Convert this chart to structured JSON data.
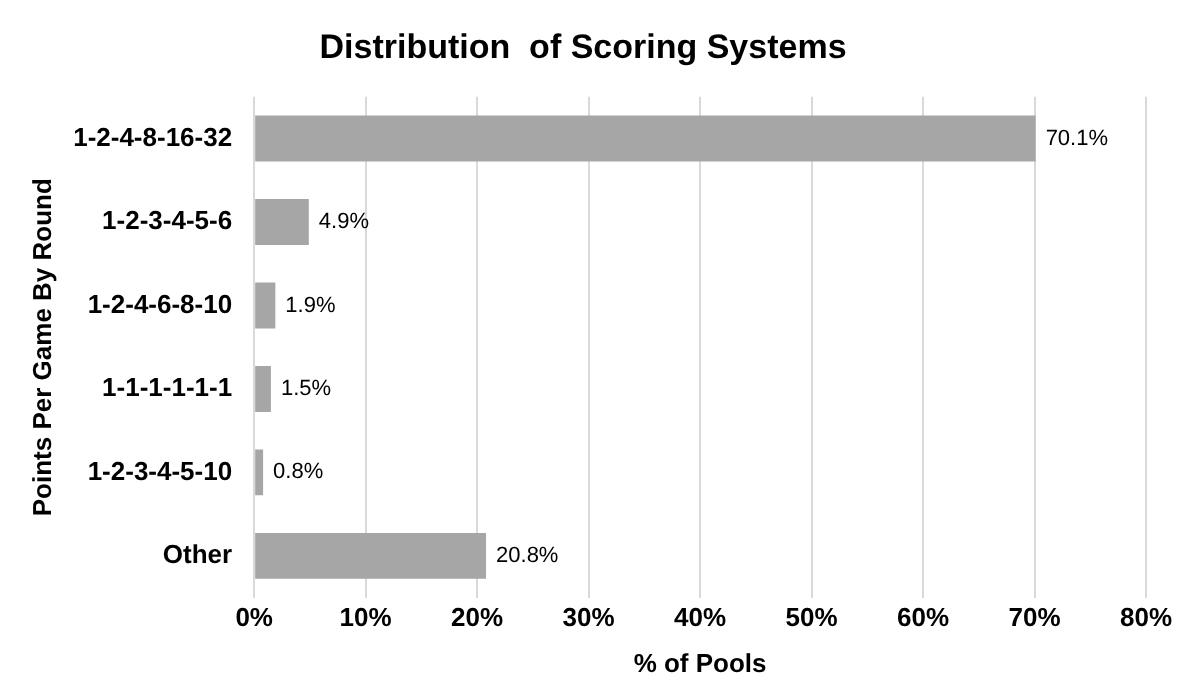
{
  "chart_data": {
    "type": "bar",
    "orientation": "horizontal",
    "title": "Distribution  of Scoring Systems",
    "xlabel": "% of Pools",
    "ylabel": "Points Per Game By Round",
    "categories": [
      "1-2-4-8-16-32",
      "1-2-3-4-5-6",
      "1-2-4-6-8-10",
      "1-1-1-1-1-1",
      "1-2-3-4-5-10",
      "Other"
    ],
    "values": [
      70.1,
      4.9,
      1.9,
      1.5,
      0.8,
      20.8
    ],
    "value_labels": [
      "70.1%",
      "4.9%",
      "1.9%",
      "1.5%",
      "0.8%",
      "20.8%"
    ],
    "color": "#a6a6a6",
    "xlim": [
      0,
      80
    ],
    "xticks": [
      {
        "value": 0,
        "label": "0%"
      },
      {
        "value": 10,
        "label": "10%"
      },
      {
        "value": 20,
        "label": "20%"
      },
      {
        "value": 30,
        "label": "30%"
      },
      {
        "value": 40,
        "label": "40%"
      },
      {
        "value": 50,
        "label": "50%"
      },
      {
        "value": 60,
        "label": "60%"
      },
      {
        "value": 70,
        "label": "70%"
      },
      {
        "value": 80,
        "label": "80%"
      }
    ],
    "grid": "x",
    "legend": false
  }
}
